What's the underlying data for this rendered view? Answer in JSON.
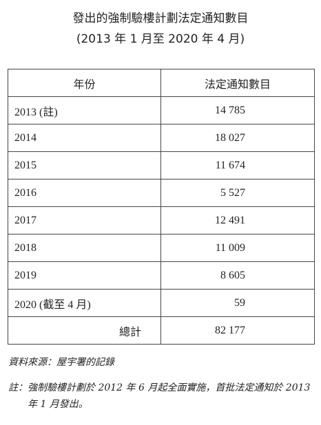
{
  "header": {
    "title": "發出的強制驗樓計劃法定通知數目",
    "subtitle": "(2013 年 1 月至 2020 年 4 月)"
  },
  "table": {
    "columns": [
      "年份",
      "法定通知數目"
    ],
    "rows": [
      [
        "2013 (註)",
        "14 785"
      ],
      [
        "2014",
        "18 027"
      ],
      [
        "2015",
        "11 674"
      ],
      [
        "2016",
        "5 527"
      ],
      [
        "2017",
        "12 491"
      ],
      [
        "2018",
        "11 009"
      ],
      [
        "2019",
        "8 605"
      ],
      [
        "2020 (截至 4 月)",
        "59"
      ]
    ],
    "total": [
      "總計",
      "82 177"
    ]
  },
  "source": "資料來源：屋宇署的記錄",
  "note": {
    "label": "註：",
    "text": "強制驗樓計劃於 2012 年 6 月起全面實施，首批法定通知於 2013 年 1 月發出。"
  }
}
